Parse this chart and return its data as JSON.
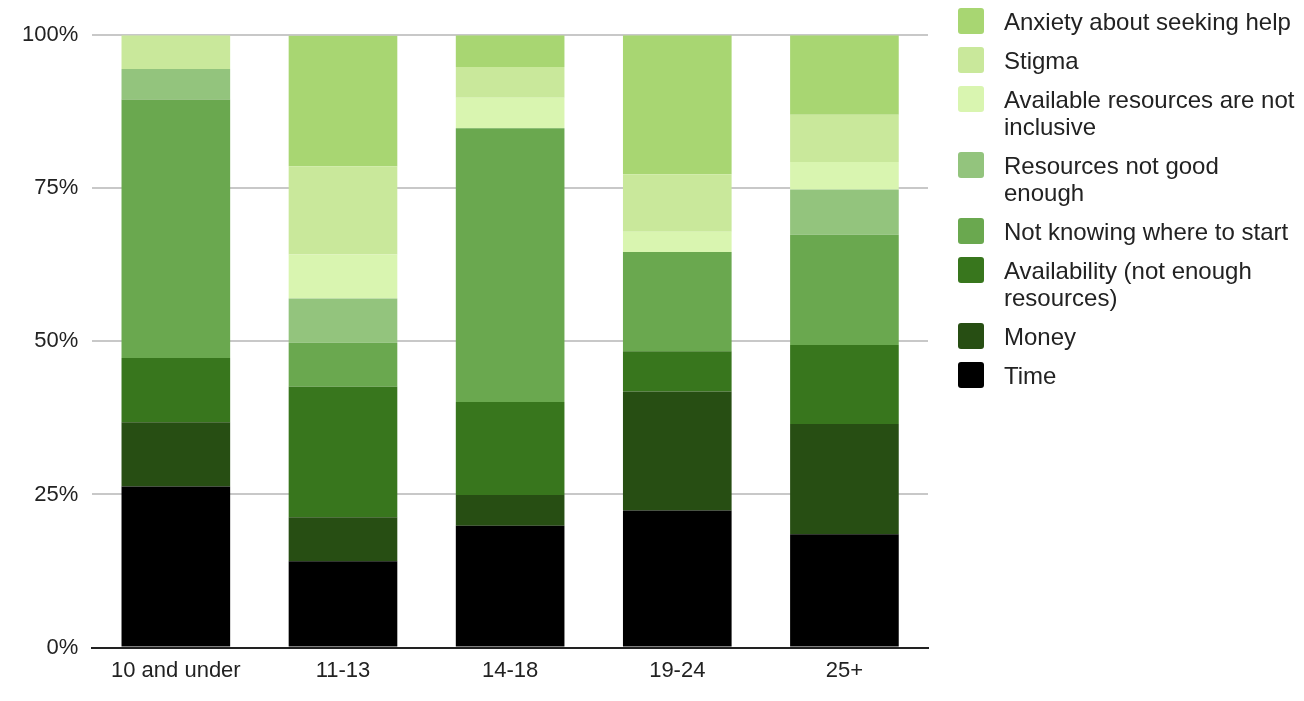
{
  "chart_data": {
    "type": "bar",
    "stacked": true,
    "categories": [
      "10 and under",
      "11-13",
      "14-18",
      "19-24",
      "25+"
    ],
    "ylim": [
      0,
      100
    ],
    "yticks": [
      {
        "value": 0,
        "label": "0%"
      },
      {
        "value": 25,
        "label": "25%"
      },
      {
        "value": 50,
        "label": "50%"
      },
      {
        "value": 75,
        "label": "75%"
      },
      {
        "value": 100,
        "label": "100%"
      }
    ],
    "grid": "y",
    "legend": "right",
    "series": [
      {
        "name": "Time",
        "color": "#000000",
        "values": [
          26.3,
          14.1,
          19.9,
          22.4,
          18.5
        ]
      },
      {
        "name": "Money",
        "color": "#274e13",
        "values": [
          10.5,
          7.2,
          5,
          19.4,
          18
        ]
      },
      {
        "name": "Availability (not enough resources)",
        "color": "#38761d",
        "values": [
          10.5,
          21.3,
          15.2,
          6.6,
          12.9
        ]
      },
      {
        "name": "Not knowing where to start",
        "color": "#6aa84f",
        "values": [
          42.2,
          7.2,
          44.7,
          16.2,
          18
        ]
      },
      {
        "name": "Resources not good enough",
        "color": "#93c47d",
        "values": [
          5,
          7.2,
          0,
          0,
          7.4
        ]
      },
      {
        "name": "Available resources are not inclusive",
        "color": "#d9f5b0",
        "values": [
          0,
          7.2,
          5,
          3.3,
          4.5
        ]
      },
      {
        "name": "Stigma",
        "color": "#c9e89b",
        "values": [
          5.5,
          14.4,
          5,
          9.4,
          7.7
        ]
      },
      {
        "name": "Anxiety about seeking help",
        "color": "#a8d672",
        "values": [
          0,
          21.3,
          5.2,
          22.7,
          13
        ]
      }
    ]
  }
}
